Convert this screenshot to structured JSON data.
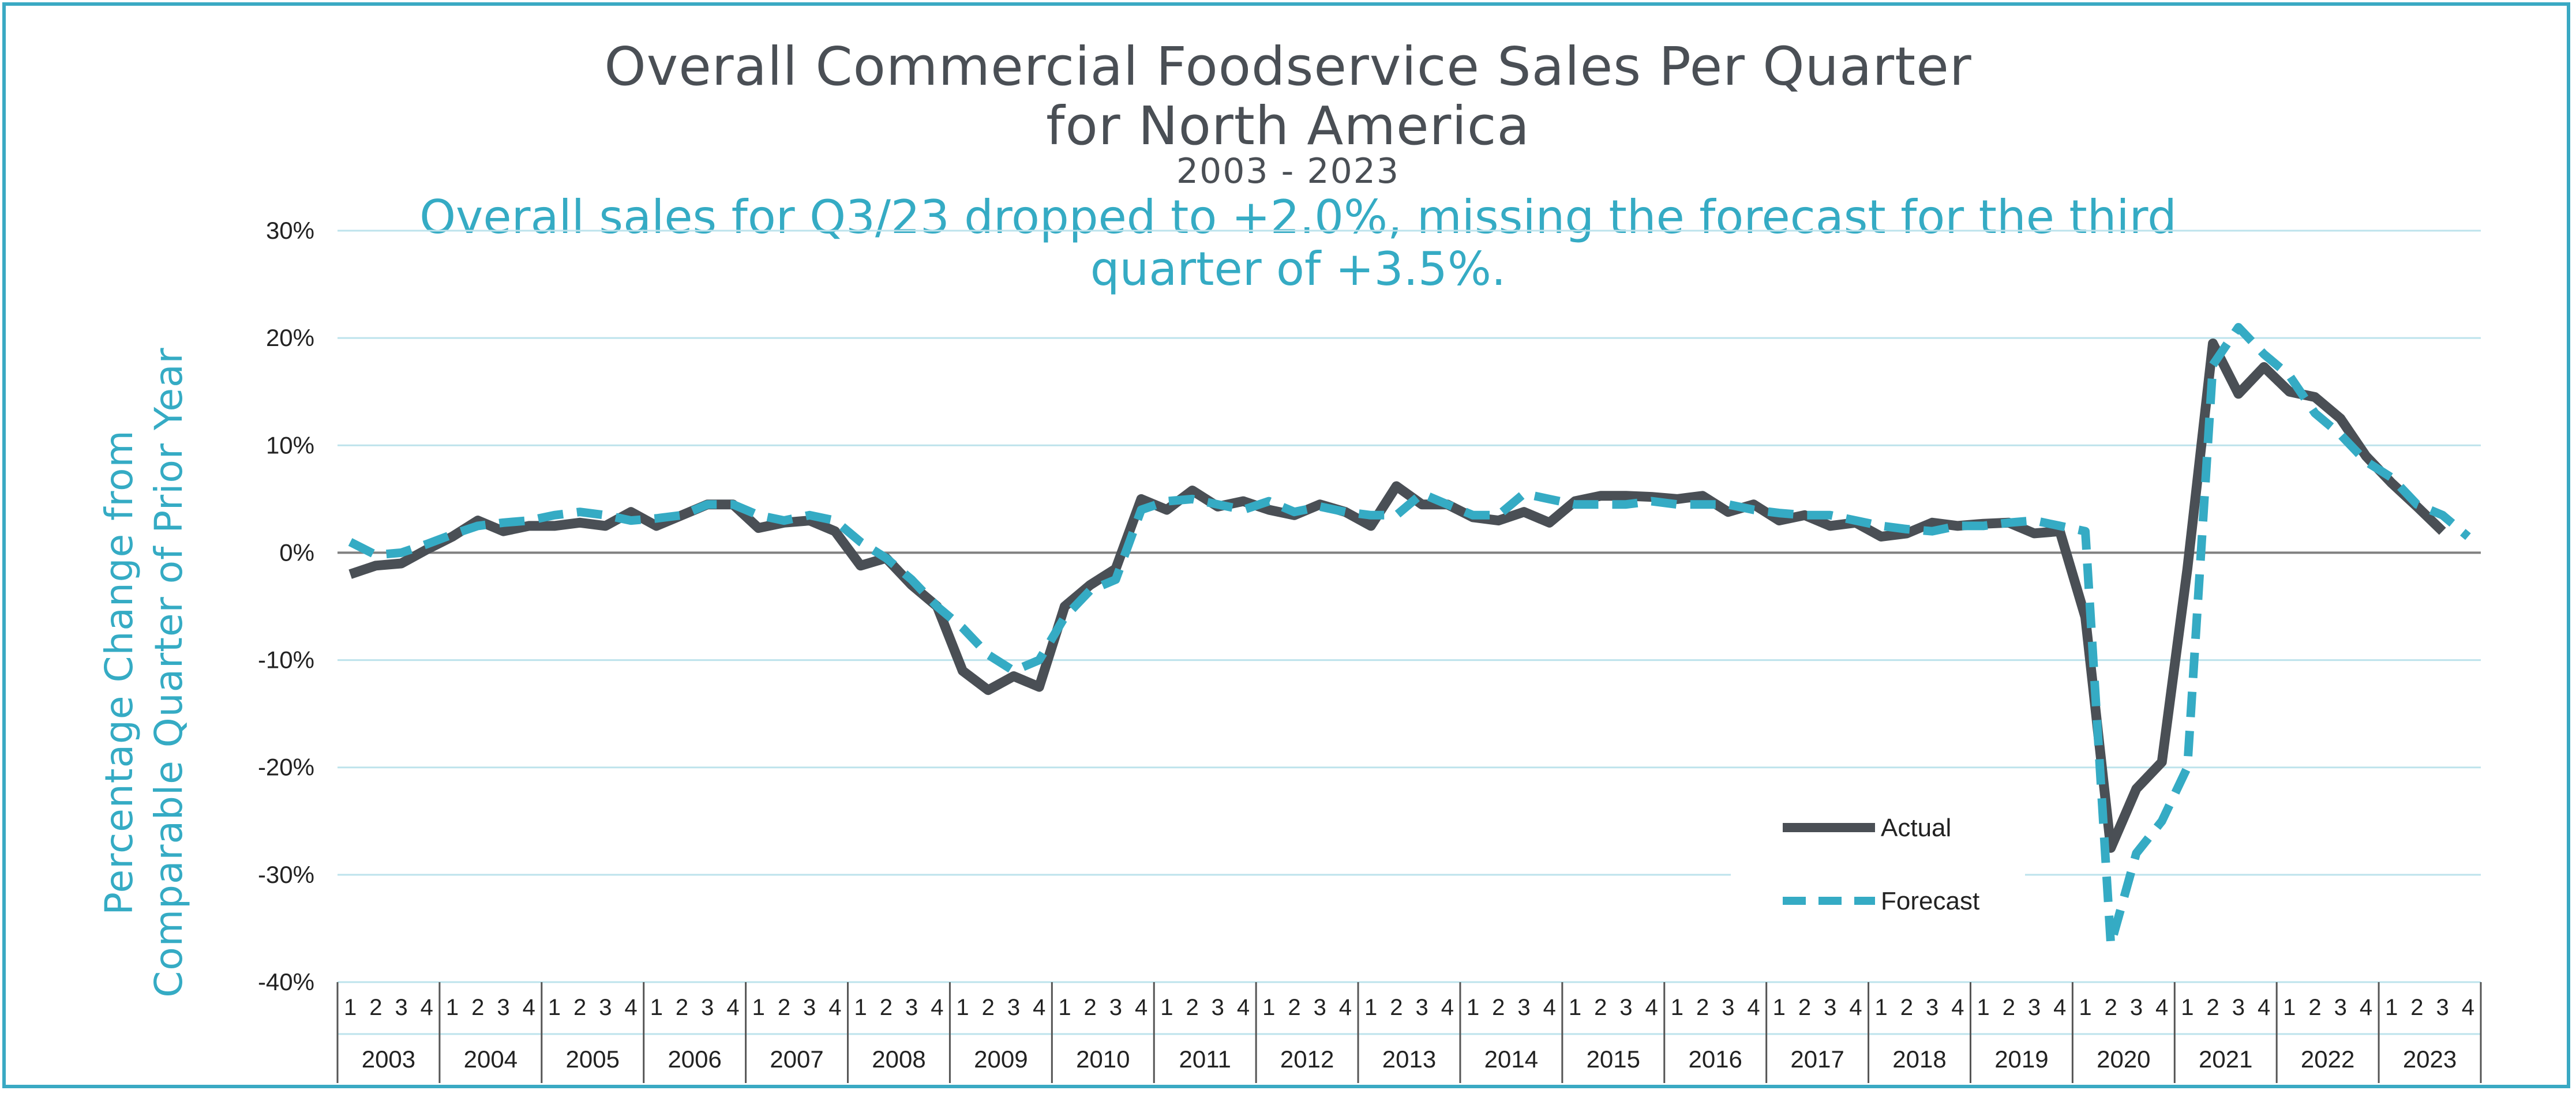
{
  "chart_data": {
    "type": "line",
    "title": "Overall Commercial Foodservice Sales Per Quarter",
    "title_line2": "for North America",
    "subtitle": "2003 - 2023",
    "annotation_line1": "Overall sales for Q3/23 dropped to +2.0%, missing the forecast for the third",
    "annotation_line2": "quarter of +3.5%.",
    "ylabel_line1": "Percentage Change from",
    "ylabel_line2": "Comparable Quarter of Prior Year",
    "ylim": [
      -40,
      30
    ],
    "yticks": [
      30,
      20,
      10,
      0,
      -10,
      -20,
      -30,
      -40
    ],
    "ytick_labels": [
      "30%",
      "20%",
      "10%",
      "0%",
      "-10%",
      "-20%",
      "-30%",
      "-40%"
    ],
    "quarter_labels": [
      "1",
      "2",
      "3",
      "4"
    ],
    "years": [
      "2003",
      "2004",
      "2005",
      "2006",
      "2007",
      "2008",
      "2009",
      "2010",
      "2011",
      "2012",
      "2013",
      "2014",
      "2015",
      "2016",
      "2017",
      "2018",
      "2019",
      "2020",
      "2021",
      "2022",
      "2023"
    ],
    "legend": {
      "position": "bottom-right",
      "actual_label": "Actual",
      "forecast_label": "Forecast"
    },
    "series": [
      {
        "name": "Actual",
        "color": "#4a4f55",
        "style": "solid",
        "values": [
          -2.0,
          -1.2,
          -1.0,
          0.3,
          1.5,
          3.0,
          2.0,
          2.5,
          2.5,
          2.8,
          2.5,
          3.8,
          2.5,
          3.5,
          4.5,
          4.5,
          2.3,
          2.8,
          3.0,
          2.0,
          -1.2,
          -0.5,
          -3.0,
          -5.0,
          -11.0,
          -12.8,
          -11.5,
          -12.5,
          -5.0,
          -3.0,
          -1.5,
          5.0,
          4.0,
          5.8,
          4.3,
          4.8,
          4.0,
          3.5,
          4.5,
          3.8,
          2.5,
          6.2,
          4.5,
          4.5,
          3.3,
          3.0,
          3.8,
          2.8,
          4.8,
          5.3,
          5.3,
          5.2,
          5.0,
          5.3,
          3.8,
          4.5,
          3.0,
          3.5,
          2.5,
          2.8,
          1.5,
          1.8,
          2.8,
          2.5,
          2.7,
          2.8,
          1.8,
          2.0,
          -6.0,
          -27.5,
          -22.0,
          -19.5,
          -1.5,
          19.5,
          14.8,
          17.3,
          15.0,
          14.5,
          12.5,
          9.0,
          6.5,
          4.3,
          2.0
        ]
      },
      {
        "name": "Forecast",
        "color": "#35abc4",
        "style": "dashed",
        "values": [
          1.0,
          -0.2,
          0.0,
          0.8,
          1.7,
          2.5,
          2.8,
          3.0,
          3.5,
          3.8,
          3.5,
          3.0,
          3.2,
          3.5,
          4.5,
          4.5,
          3.5,
          3.0,
          3.5,
          3.0,
          1.0,
          -0.5,
          -2.5,
          -5.0,
          -7.0,
          -9.5,
          -11.0,
          -10.0,
          -6.0,
          -3.5,
          -2.5,
          4.0,
          4.8,
          5.0,
          4.5,
          4.0,
          4.8,
          3.8,
          4.3,
          3.8,
          3.5,
          3.5,
          5.5,
          4.5,
          3.5,
          3.5,
          5.5,
          5.0,
          4.5,
          4.5,
          4.5,
          4.8,
          4.5,
          4.5,
          4.5,
          4.0,
          3.7,
          3.5,
          3.5,
          3.0,
          2.5,
          2.2,
          2.0,
          2.5,
          2.5,
          2.8,
          3.0,
          2.5,
          2.0,
          -36.5,
          -28.0,
          -25.0,
          -20.0,
          17.5,
          21.0,
          18.5,
          16.5,
          13.0,
          11.0,
          8.5,
          7.0,
          4.5,
          3.5,
          1.5
        ]
      }
    ]
  }
}
